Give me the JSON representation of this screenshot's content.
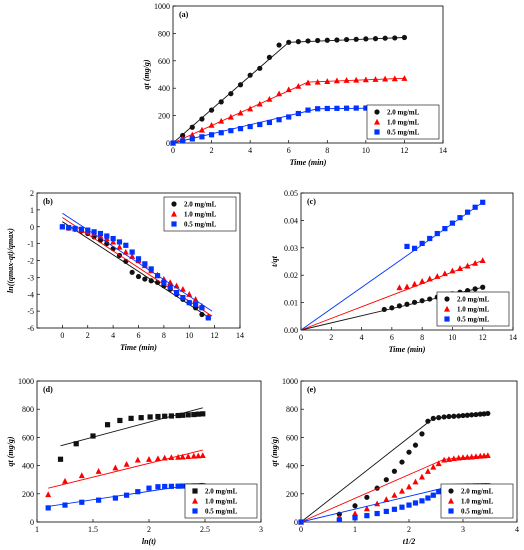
{
  "colors": {
    "black": "#111111",
    "red": "#ff0000",
    "blue": "#0033ff"
  },
  "chart_data": [
    {
      "id": "a",
      "panel_label": "(a)",
      "type": "scatter",
      "xlabel": "Time (min)",
      "ylabel": "qt (mg/g)",
      "xlim": [
        0,
        14
      ],
      "ylim": [
        0,
        1000
      ],
      "xticks": [
        0,
        2,
        4,
        6,
        8,
        10,
        12,
        14
      ],
      "yticks": [
        0,
        200,
        400,
        600,
        800,
        1000
      ],
      "legend": "bottom-right",
      "series": [
        {
          "name": "2.0 mg/mL",
          "marker": "circle",
          "color": "#111111",
          "x": [
            0,
            0.5,
            1,
            1.5,
            2,
            2.5,
            3,
            3.5,
            4,
            4.5,
            5,
            5.5,
            6,
            6.5,
            7,
            7.5,
            8,
            8.5,
            9,
            9.5,
            10,
            10.5,
            11,
            11.5,
            12
          ],
          "y": [
            0,
            55,
            115,
            175,
            240,
            300,
            360,
            425,
            495,
            545,
            625,
            715,
            735,
            740,
            745,
            748,
            750,
            752,
            755,
            757,
            760,
            762,
            765,
            767,
            770
          ],
          "fit_x": [
            0,
            6,
            12
          ],
          "fit_y": [
            0,
            735,
            770
          ]
        },
        {
          "name": "1.0 mg/mL",
          "marker": "triangle",
          "color": "#ff0000",
          "x": [
            0,
            0.5,
            1,
            1.5,
            2,
            2.5,
            3,
            3.5,
            4,
            4.5,
            5,
            5.5,
            6,
            6.5,
            7,
            7.5,
            8,
            8.5,
            9,
            9.5,
            10,
            10.5,
            11,
            11.5,
            12
          ],
          "y": [
            0,
            30,
            60,
            95,
            130,
            160,
            190,
            220,
            250,
            285,
            320,
            360,
            390,
            415,
            440,
            445,
            450,
            455,
            458,
            460,
            462,
            465,
            468,
            470,
            472
          ],
          "fit_x": [
            0,
            7,
            12
          ],
          "fit_y": [
            0,
            445,
            472
          ]
        },
        {
          "name": "0.5 mg/mL",
          "marker": "square",
          "color": "#0033ff",
          "x": [
            0,
            0.5,
            1,
            1.5,
            2,
            2.5,
            3,
            3.5,
            4,
            4.5,
            5,
            5.5,
            6,
            6.5,
            7,
            7.5,
            8,
            8.5,
            9,
            9.5,
            10,
            10.5,
            11,
            11.5,
            12
          ],
          "y": [
            0,
            15,
            30,
            45,
            60,
            75,
            90,
            105,
            120,
            135,
            150,
            170,
            190,
            215,
            240,
            250,
            252,
            253,
            254,
            255,
            255,
            256,
            256,
            257,
            257
          ],
          "fit_x": [
            0,
            7.5,
            12
          ],
          "fit_y": [
            0,
            250,
            257
          ]
        }
      ]
    },
    {
      "id": "b",
      "panel_label": "(b)",
      "type": "scatter",
      "xlabel": "Time (min)",
      "ylabel": "ln((qmax-qt)/qmax)",
      "xlim": [
        -2,
        14
      ],
      "ylim": [
        -6,
        2
      ],
      "xticks": [
        0,
        2,
        4,
        6,
        8,
        10,
        12,
        14
      ],
      "yticks": [
        -6,
        -5,
        -4,
        -3,
        -2,
        -1,
        0,
        1,
        2
      ],
      "legend": "top-right",
      "series": [
        {
          "name": "2.0 mg/mL",
          "marker": "circle",
          "color": "#111111",
          "x": [
            0,
            0.5,
            1,
            1.5,
            2,
            2.5,
            3,
            3.5,
            4,
            4.5,
            5,
            5.5,
            6,
            6.5,
            7,
            7.5,
            8,
            8.5,
            9,
            9.5,
            10,
            10.5,
            11
          ],
          "y": [
            0,
            -0.08,
            -0.15,
            -0.25,
            -0.4,
            -0.6,
            -0.8,
            -1.0,
            -1.3,
            -1.7,
            -2.05,
            -2.7,
            -2.95,
            -3.1,
            -3.2,
            -3.3,
            -3.5,
            -3.7,
            -4.0,
            -4.3,
            -4.5,
            -4.8,
            -5.2
          ],
          "fit_x": [
            0,
            11.6
          ],
          "fit_y": [
            0.3,
            -5.4
          ]
        },
        {
          "name": "1.0 mg/mL",
          "marker": "triangle",
          "color": "#ff0000",
          "x": [
            0,
            0.5,
            1,
            1.5,
            2,
            2.5,
            3,
            3.5,
            4,
            4.5,
            5,
            5.5,
            6,
            6.5,
            7,
            7.5,
            8,
            8.5,
            9,
            9.5,
            10,
            10.5,
            11,
            11.5
          ],
          "y": [
            0,
            -0.06,
            -0.12,
            -0.2,
            -0.3,
            -0.4,
            -0.55,
            -0.7,
            -0.9,
            -1.2,
            -1.5,
            -1.75,
            -2.0,
            -2.3,
            -2.6,
            -2.85,
            -3.1,
            -3.3,
            -3.5,
            -3.7,
            -4.0,
            -4.3,
            -4.7,
            -5.3
          ],
          "fit_x": [
            0,
            11.8
          ],
          "fit_y": [
            0.55,
            -5.3
          ]
        },
        {
          "name": "0.5 mg/mL",
          "marker": "square",
          "color": "#0033ff",
          "x": [
            0,
            0.5,
            1,
            1.5,
            2,
            2.5,
            3,
            3.5,
            4,
            4.5,
            5,
            5.5,
            6,
            6.5,
            7,
            7.5,
            8,
            8.5,
            9,
            9.5,
            10,
            10.5,
            11,
            11.5
          ],
          "y": [
            0,
            -0.05,
            -0.1,
            -0.15,
            -0.2,
            -0.3,
            -0.4,
            -0.55,
            -0.7,
            -0.9,
            -1.1,
            -1.5,
            -1.9,
            -2.2,
            -2.5,
            -2.9,
            -3.3,
            -3.6,
            -3.9,
            -4.2,
            -4.5,
            -4.6,
            -4.8,
            -5.4
          ],
          "fit_x": [
            0,
            11.8
          ],
          "fit_y": [
            0.8,
            -5.0
          ]
        }
      ]
    },
    {
      "id": "c",
      "panel_label": "(c)",
      "type": "scatter",
      "xlabel": "Time (min)",
      "ylabel": "t/qt",
      "xlim": [
        0,
        14
      ],
      "ylim": [
        0,
        0.05
      ],
      "xticks": [
        0,
        2,
        4,
        6,
        8,
        10,
        12,
        14
      ],
      "yticks": [
        0.0,
        0.01,
        0.02,
        0.03,
        0.04,
        0.05
      ],
      "legend": "bottom-right",
      "series": [
        {
          "name": "2.0 mg/mL",
          "marker": "circle",
          "color": "#111111",
          "x": [
            5.5,
            6,
            6.5,
            7,
            7.5,
            8,
            8.5,
            9,
            9.5,
            10,
            10.5,
            11,
            11.5,
            12
          ],
          "y": [
            0.0075,
            0.0081,
            0.0088,
            0.0094,
            0.0101,
            0.0107,
            0.0113,
            0.012,
            0.0126,
            0.0132,
            0.0138,
            0.0144,
            0.015,
            0.0156
          ],
          "fit_x": [
            0,
            12
          ],
          "fit_y": [
            0,
            0.0156
          ]
        },
        {
          "name": "1.0 mg/mL",
          "marker": "triangle",
          "color": "#ff0000",
          "x": [
            6.5,
            7,
            7.5,
            8,
            8.5,
            9,
            9.5,
            10,
            10.5,
            11,
            11.5,
            12
          ],
          "y": [
            0.0155,
            0.0158,
            0.0168,
            0.0178,
            0.0187,
            0.0196,
            0.0206,
            0.0216,
            0.0225,
            0.0234,
            0.0244,
            0.0254
          ],
          "fit_x": [
            0,
            12
          ],
          "fit_y": [
            0,
            0.0254
          ]
        },
        {
          "name": "0.5 mg/mL",
          "marker": "square",
          "color": "#0033ff",
          "x": [
            7,
            7.5,
            8,
            8.5,
            9,
            9.5,
            10,
            10.5,
            11,
            11.5,
            12
          ],
          "y": [
            0.0305,
            0.0298,
            0.0316,
            0.0334,
            0.0352,
            0.037,
            0.039,
            0.041,
            0.043,
            0.0448,
            0.0466
          ],
          "fit_x": [
            0,
            12
          ],
          "fit_y": [
            0,
            0.0466
          ]
        }
      ]
    },
    {
      "id": "d",
      "panel_label": "(d)",
      "type": "scatter",
      "xlabel": "ln(t)",
      "ylabel": "qt (mg/g)",
      "xlim": [
        1.0,
        3.0
      ],
      "ylim": [
        0,
        1000
      ],
      "xticks": [
        1.0,
        1.5,
        2.0,
        2.5,
        3.0
      ],
      "yticks": [
        0,
        200,
        400,
        600,
        800,
        1000
      ],
      "legend": "bottom-right",
      "series": [
        {
          "name": "2.0 mg/mL",
          "marker": "square",
          "color": "#111111",
          "x": [
            1.21,
            1.35,
            1.5,
            1.63,
            1.74,
            1.84,
            1.93,
            2.01,
            2.08,
            2.14,
            2.2,
            2.26,
            2.3,
            2.35,
            2.4,
            2.44,
            2.48
          ],
          "y": [
            445,
            555,
            610,
            690,
            720,
            735,
            740,
            745,
            748,
            750,
            752,
            755,
            757,
            760,
            762,
            765,
            767
          ],
          "fit_x": [
            1.21,
            2.48
          ],
          "fit_y": [
            540,
            810
          ]
        },
        {
          "name": "1.0 mg/mL",
          "marker": "triangle",
          "color": "#ff0000",
          "x": [
            1.1,
            1.25,
            1.4,
            1.55,
            1.7,
            1.8,
            1.9,
            2.0,
            2.08,
            2.14,
            2.2,
            2.26,
            2.3,
            2.35,
            2.4,
            2.44,
            2.48
          ],
          "y": [
            195,
            290,
            330,
            360,
            385,
            410,
            440,
            445,
            450,
            455,
            458,
            460,
            462,
            465,
            468,
            470,
            472
          ],
          "fit_x": [
            1.1,
            2.48
          ],
          "fit_y": [
            240,
            510
          ]
        },
        {
          "name": "0.5 mg/mL",
          "marker": "square",
          "color": "#0033ff",
          "x": [
            1.1,
            1.25,
            1.4,
            1.55,
            1.7,
            1.8,
            1.9,
            2.0,
            2.08,
            2.14,
            2.2,
            2.26,
            2.3,
            2.35,
            2.4,
            2.44,
            2.48
          ],
          "y": [
            100,
            120,
            140,
            155,
            170,
            190,
            215,
            240,
            250,
            252,
            253,
            254,
            255,
            255,
            256,
            256,
            257
          ],
          "fit_x": [
            1.1,
            2.48
          ],
          "fit_y": [
            110,
            275
          ]
        }
      ]
    },
    {
      "id": "e",
      "panel_label": "(e)",
      "type": "scatter",
      "xlabel": "t1/2",
      "ylabel": "qt (mg/g)",
      "xlim": [
        0,
        4
      ],
      "ylim": [
        0,
        1000
      ],
      "xticks": [
        0,
        1,
        2,
        3,
        4
      ],
      "yticks": [
        0,
        200,
        400,
        600,
        800,
        1000
      ],
      "legend": "bottom-right",
      "series": [
        {
          "name": "2.0 mg/mL",
          "marker": "circle",
          "color": "#111111",
          "x": [
            0,
            0.71,
            1,
            1.22,
            1.41,
            1.58,
            1.73,
            1.87,
            2,
            2.12,
            2.24,
            2.35,
            2.45,
            2.55,
            2.65,
            2.74,
            2.83,
            2.92,
            3,
            3.08,
            3.16,
            3.24,
            3.32,
            3.39,
            3.46
          ],
          "y": [
            0,
            55,
            115,
            175,
            240,
            300,
            360,
            425,
            495,
            545,
            625,
            715,
            735,
            740,
            745,
            748,
            750,
            752,
            755,
            757,
            760,
            762,
            765,
            767,
            770
          ],
          "fit_x": [
            0,
            2.45,
            3.46
          ],
          "fit_y": [
            0,
            735,
            770
          ]
        },
        {
          "name": "1.0 mg/mL",
          "marker": "triangle",
          "color": "#ff0000",
          "x": [
            0,
            0.71,
            1,
            1.22,
            1.41,
            1.58,
            1.73,
            1.87,
            2,
            2.12,
            2.24,
            2.35,
            2.45,
            2.55,
            2.65,
            2.74,
            2.83,
            2.92,
            3,
            3.08,
            3.16,
            3.24,
            3.32,
            3.39,
            3.46
          ],
          "y": [
            0,
            30,
            60,
            95,
            130,
            160,
            190,
            220,
            250,
            285,
            320,
            360,
            390,
            415,
            440,
            445,
            450,
            455,
            458,
            460,
            462,
            465,
            468,
            470,
            472
          ],
          "fit_x": [
            0,
            2.65,
            3.46
          ],
          "fit_y": [
            0,
            445,
            472
          ]
        },
        {
          "name": "0.5 mg/mL",
          "marker": "square",
          "color": "#0033ff",
          "x": [
            0,
            0.71,
            1,
            1.22,
            1.41,
            1.58,
            1.73,
            1.87,
            2,
            2.12,
            2.24,
            2.35,
            2.45,
            2.55,
            2.65,
            2.74,
            2.83,
            2.92,
            3,
            3.08,
            3.16,
            3.24,
            3.32,
            3.39,
            3.46
          ],
          "y": [
            0,
            15,
            30,
            45,
            60,
            75,
            90,
            105,
            120,
            135,
            150,
            170,
            190,
            215,
            240,
            250,
            252,
            253,
            254,
            255,
            255,
            256,
            256,
            257,
            257
          ],
          "fit_x": [
            0,
            2.74,
            3.46
          ],
          "fit_y": [
            0,
            250,
            257
          ]
        }
      ]
    }
  ]
}
